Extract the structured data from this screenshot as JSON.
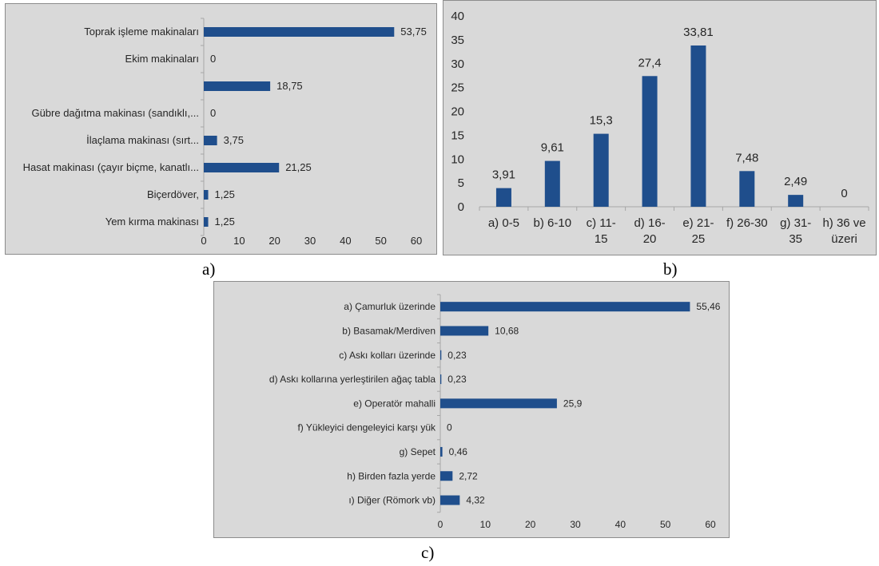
{
  "captions": {
    "a": "a)",
    "b": "b)",
    "c": "c)"
  },
  "colors": {
    "bar": "#1f4e8c",
    "axis": "#a6a6a6",
    "panel": "#d9d9d9",
    "text": "#262626"
  },
  "chart_data": [
    {
      "id": "a",
      "type": "bar",
      "orientation": "horizontal",
      "categories": [
        "Toprak işleme makinaları",
        "Ekim makinaları",
        "",
        "Gübre dağıtma makinası  (sandıklı,...",
        "İlaçlama makinası  (sırt...",
        "Hasat makinası (çayır biçme, kanatlı...",
        "Biçerdöver,",
        "Yem kırma makinası"
      ],
      "values": [
        53.75,
        0,
        18.75,
        0,
        3.75,
        21.25,
        1.25,
        1.25
      ],
      "value_labels": [
        "53,75",
        "0",
        "18,75",
        "0",
        "3,75",
        "21,25",
        "1,25",
        "1,25"
      ],
      "xlim": [
        0,
        60
      ],
      "xticks": [
        "0",
        "10",
        "20",
        "30",
        "40",
        "50",
        "60"
      ],
      "grid": false
    },
    {
      "id": "b",
      "type": "bar",
      "orientation": "vertical",
      "categories": [
        [
          "a) 0-5"
        ],
        [
          "b) 6-10"
        ],
        [
          "c) 11-",
          "15"
        ],
        [
          "d) 16-",
          "20"
        ],
        [
          "e) 21-",
          "25"
        ],
        [
          "f) 26-30"
        ],
        [
          "g) 31-",
          "35"
        ],
        [
          "h) 36 ve",
          "üzeri"
        ]
      ],
      "values": [
        3.91,
        9.61,
        15.3,
        27.4,
        33.81,
        7.48,
        2.49,
        0
      ],
      "value_labels": [
        "3,91",
        "9,61",
        "15,3",
        "27,4",
        "33,81",
        "7,48",
        "2,49",
        "0"
      ],
      "ylim": [
        0,
        40
      ],
      "yticks": [
        "0",
        "5",
        "10",
        "15",
        "20",
        "25",
        "30",
        "35",
        "40"
      ],
      "grid": false
    },
    {
      "id": "c",
      "type": "bar",
      "orientation": "horizontal",
      "categories": [
        "a) Çamurluk üzerinde",
        "b) Basamak/Merdiven",
        "c) Askı kolları üzerinde",
        "d) Askı kollarına yerleştirilen ağaç tabla",
        "e) Operatör mahalli",
        "f) Yükleyici dengeleyici karşı yük",
        "g) Sepet",
        "h) Birden fazla yerde",
        "ı) Diğer (Römork vb)"
      ],
      "values": [
        55.46,
        10.68,
        0.23,
        0.23,
        25.9,
        0,
        0.46,
        2.72,
        4.32
      ],
      "value_labels": [
        "55,46",
        "10,68",
        "0,23",
        "0,23",
        "25,9",
        "0",
        "0,46",
        "2,72",
        "4,32"
      ],
      "xlim": [
        0,
        60
      ],
      "xticks": [
        "0",
        "10",
        "20",
        "30",
        "40",
        "50",
        "60"
      ],
      "grid": false
    }
  ]
}
